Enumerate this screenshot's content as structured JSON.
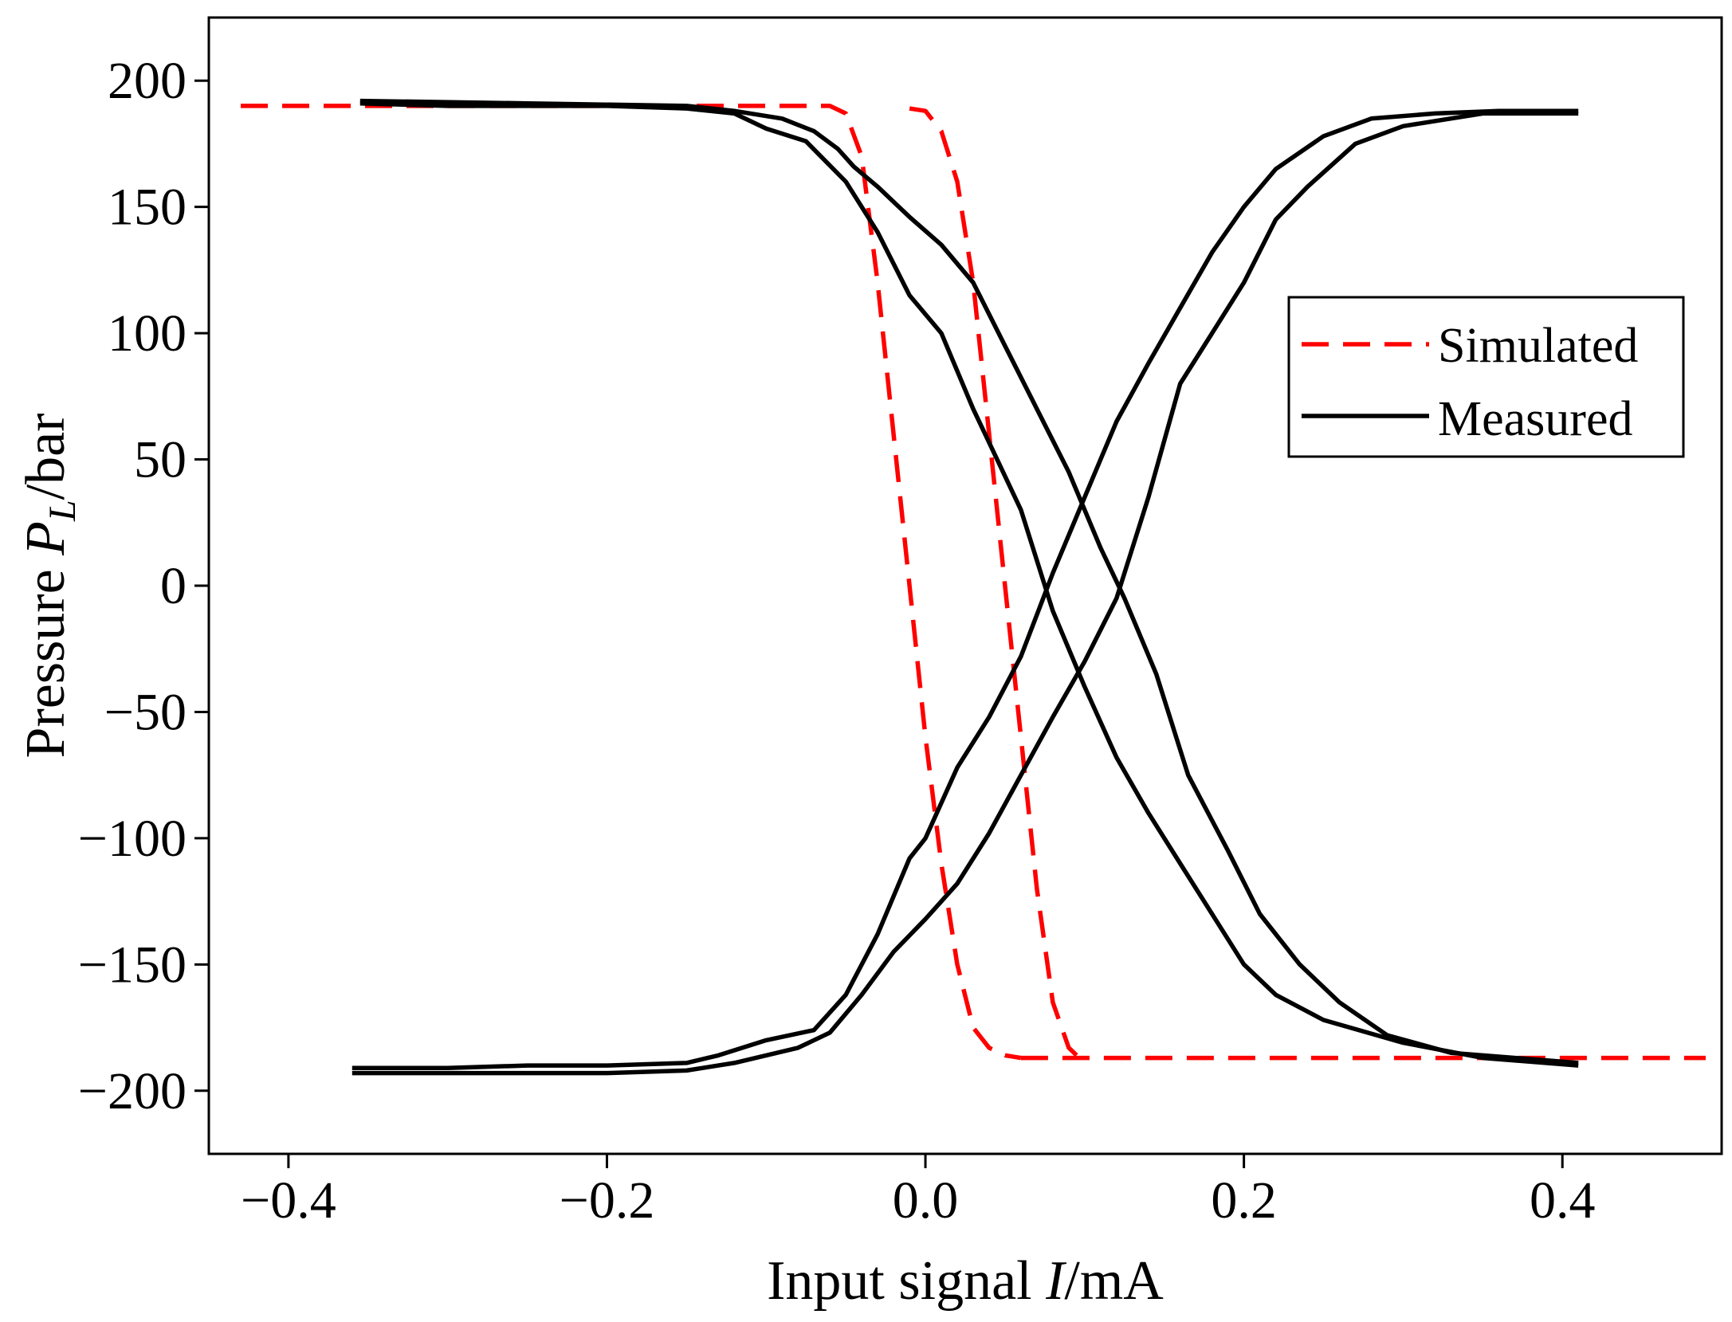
{
  "chart_data": {
    "type": "line",
    "title": "",
    "xlabel": {
      "prefix": "Input signal ",
      "italic": "I",
      "suffix": "/mA"
    },
    "ylabel": {
      "prefix": "Pressure ",
      "italic": "P",
      "subscript": "L",
      "suffix": "/bar"
    },
    "xlim": [
      -0.45,
      0.5
    ],
    "ylim": [
      -225,
      225
    ],
    "xticks": [
      -0.4,
      -0.2,
      0.0,
      0.2,
      0.4
    ],
    "xtick_labels": [
      "−0.4",
      "−0.2",
      "0.0",
      "0.2",
      "0.4"
    ],
    "yticks": [
      200,
      150,
      100,
      50,
      0,
      -50,
      -100,
      -150,
      -200
    ],
    "ytick_labels": [
      "200",
      "150",
      "100",
      "50",
      "0",
      "−50",
      "−100",
      "−150",
      "−200"
    ],
    "grid": false,
    "legend": {
      "placement": "upper-right",
      "entries": [
        "Simulated",
        "Measured"
      ]
    },
    "series": [
      {
        "name": "Simulated",
        "color": "#ff0000",
        "style": "dashed",
        "segments": [
          [
            [
              -0.43,
              190
            ],
            [
              -0.06,
              190
            ],
            [
              -0.05,
              187
            ],
            [
              -0.04,
              170
            ],
            [
              -0.03,
              120
            ],
            [
              -0.02,
              60
            ],
            [
              -0.01,
              0
            ],
            [
              0.0,
              -60
            ],
            [
              0.01,
              -110
            ],
            [
              0.02,
              -150
            ],
            [
              0.03,
              -175
            ],
            [
              0.04,
              -183
            ],
            [
              0.05,
              -186
            ],
            [
              0.06,
              -187
            ]
          ],
          [
            [
              0.06,
              -187
            ],
            [
              0.49,
              -187
            ]
          ],
          [
            [
              -0.01,
              189
            ],
            [
              0.0,
              188
            ],
            [
              0.01,
              180
            ],
            [
              0.02,
              160
            ],
            [
              0.03,
              120
            ],
            [
              0.04,
              60
            ],
            [
              0.05,
              0
            ],
            [
              0.06,
              -60
            ],
            [
              0.07,
              -120
            ],
            [
              0.08,
              -165
            ],
            [
              0.09,
              -183
            ],
            [
              0.095,
              -186
            ]
          ]
        ]
      },
      {
        "name": "Measured",
        "color": "#000000",
        "style": "solid",
        "segments": [
          [
            [
              -0.355,
              191
            ],
            [
              -0.3,
              190
            ],
            [
              -0.2,
              190
            ],
            [
              -0.15,
              189
            ],
            [
              -0.12,
              187
            ],
            [
              -0.1,
              181
            ],
            [
              -0.075,
              176
            ],
            [
              -0.05,
              160
            ],
            [
              -0.03,
              140
            ],
            [
              -0.01,
              115
            ],
            [
              0.01,
              100
            ],
            [
              0.03,
              70
            ],
            [
              0.045,
              50
            ],
            [
              0.06,
              30
            ],
            [
              0.08,
              -10
            ],
            [
              0.1,
              -40
            ],
            [
              0.12,
              -68
            ],
            [
              0.14,
              -90
            ],
            [
              0.16,
              -110
            ],
            [
              0.18,
              -130
            ],
            [
              0.2,
              -150
            ],
            [
              0.22,
              -162
            ],
            [
              0.25,
              -172
            ],
            [
              0.3,
              -181
            ],
            [
              0.35,
              -187
            ],
            [
              0.41,
              -190
            ]
          ],
          [
            [
              -0.355,
              192
            ],
            [
              -0.25,
              191
            ],
            [
              -0.15,
              190
            ],
            [
              -0.12,
              188
            ],
            [
              -0.09,
              185
            ],
            [
              -0.07,
              180
            ],
            [
              -0.055,
              173
            ],
            [
              -0.045,
              166
            ],
            [
              -0.03,
              158
            ],
            [
              -0.01,
              146
            ],
            [
              0.01,
              135
            ],
            [
              0.03,
              120
            ],
            [
              0.05,
              95
            ],
            [
              0.07,
              70
            ],
            [
              0.09,
              45
            ],
            [
              0.11,
              15
            ],
            [
              0.125,
              -5
            ],
            [
              0.145,
              -35
            ],
            [
              0.165,
              -75
            ],
            [
              0.19,
              -105
            ],
            [
              0.21,
              -130
            ],
            [
              0.235,
              -150
            ],
            [
              0.26,
              -165
            ],
            [
              0.29,
              -178
            ],
            [
              0.33,
              -185
            ],
            [
              0.41,
              -189
            ]
          ],
          [
            [
              -0.36,
              -191
            ],
            [
              -0.3,
              -191
            ],
            [
              -0.25,
              -190
            ],
            [
              -0.2,
              -190
            ],
            [
              -0.15,
              -189
            ],
            [
              -0.13,
              -186
            ],
            [
              -0.1,
              -180
            ],
            [
              -0.07,
              -176
            ],
            [
              -0.05,
              -162
            ],
            [
              -0.03,
              -138
            ],
            [
              -0.01,
              -108
            ],
            [
              0.0,
              -100
            ],
            [
              0.02,
              -72
            ],
            [
              0.04,
              -52
            ],
            [
              0.06,
              -28
            ],
            [
              0.08,
              5
            ],
            [
              0.1,
              35
            ],
            [
              0.12,
              65
            ],
            [
              0.14,
              88
            ],
            [
              0.16,
              110
            ],
            [
              0.18,
              132
            ],
            [
              0.2,
              150
            ],
            [
              0.22,
              165
            ],
            [
              0.25,
              178
            ],
            [
              0.28,
              185
            ],
            [
              0.32,
              187
            ],
            [
              0.36,
              188
            ],
            [
              0.41,
              188
            ]
          ],
          [
            [
              -0.36,
              -193
            ],
            [
              -0.3,
              -193
            ],
            [
              -0.25,
              -193
            ],
            [
              -0.2,
              -193
            ],
            [
              -0.15,
              -192
            ],
            [
              -0.12,
              -189
            ],
            [
              -0.08,
              -183
            ],
            [
              -0.06,
              -177
            ],
            [
              -0.04,
              -162
            ],
            [
              -0.02,
              -145
            ],
            [
              0.0,
              -132
            ],
            [
              0.02,
              -118
            ],
            [
              0.04,
              -98
            ],
            [
              0.06,
              -75
            ],
            [
              0.08,
              -52
            ],
            [
              0.1,
              -30
            ],
            [
              0.12,
              -5
            ],
            [
              0.14,
              35
            ],
            [
              0.16,
              80
            ],
            [
              0.18,
              100
            ],
            [
              0.2,
              120
            ],
            [
              0.22,
              145
            ],
            [
              0.24,
              158
            ],
            [
              0.27,
              175
            ],
            [
              0.3,
              182
            ],
            [
              0.35,
              187
            ],
            [
              0.41,
              187
            ]
          ]
        ]
      }
    ]
  }
}
